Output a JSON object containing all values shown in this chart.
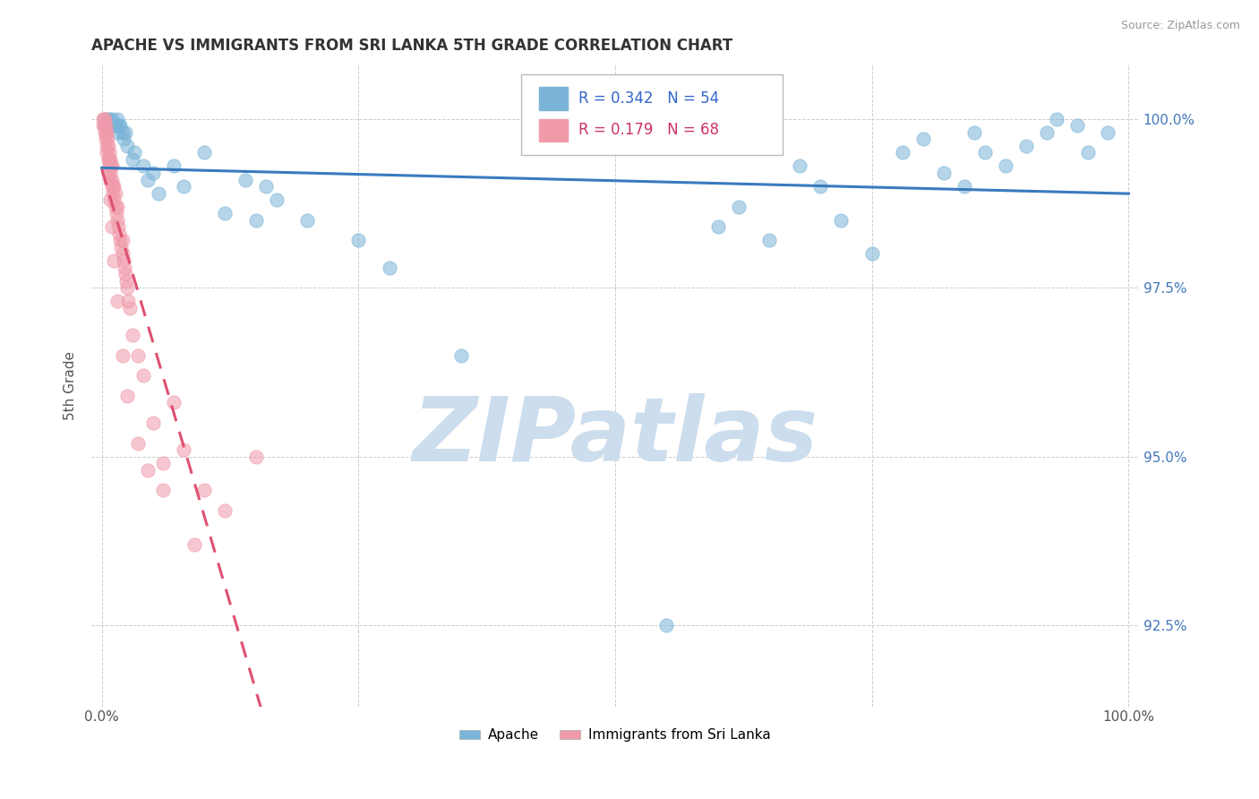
{
  "title": "APACHE VS IMMIGRANTS FROM SRI LANKA 5TH GRADE CORRELATION CHART",
  "source_text": "Source: ZipAtlas.com",
  "ylabel": "5th Grade",
  "xlim": [
    -1.0,
    101.0
  ],
  "ylim": [
    91.3,
    100.8
  ],
  "yticks": [
    92.5,
    95.0,
    97.5,
    100.0
  ],
  "xticks": [
    0.0,
    25.0,
    50.0,
    75.0,
    100.0
  ],
  "xtick_labels": [
    "0.0%",
    "",
    "",
    "",
    "100.0%"
  ],
  "ytick_labels": [
    "92.5%",
    "95.0%",
    "97.5%",
    "100.0%"
  ],
  "blue_color": "#7ab4d8",
  "pink_color": "#f09aaa",
  "blue_line_color": "#3a7abf",
  "pink_line_color": "#e05070",
  "blue_R": 0.342,
  "blue_N": 54,
  "pink_R": 0.179,
  "pink_N": 68,
  "watermark": "ZIPatlas",
  "watermark_color": "#ccdded",
  "blue_scatter_x": [
    0.3,
    0.5,
    0.7,
    0.8,
    1.0,
    1.2,
    1.4,
    1.5,
    1.6,
    1.7,
    1.8,
    2.0,
    2.1,
    2.3,
    2.5,
    3.0,
    3.2,
    4.0,
    4.5,
    5.0,
    5.5,
    7.0,
    8.0,
    10.0,
    12.0,
    14.0,
    15.0,
    16.0,
    17.0,
    20.0,
    25.0,
    28.0,
    35.0,
    55.0,
    60.0,
    62.0,
    65.0,
    68.0,
    70.0,
    72.0,
    75.0,
    78.0,
    80.0,
    82.0,
    84.0,
    85.0,
    86.0,
    88.0,
    90.0,
    92.0,
    93.0,
    95.0,
    96.0,
    98.0
  ],
  "blue_scatter_y": [
    99.9,
    100.0,
    100.0,
    99.9,
    100.0,
    99.9,
    99.9,
    100.0,
    99.8,
    99.9,
    99.9,
    99.8,
    99.7,
    99.8,
    99.6,
    99.4,
    99.5,
    99.3,
    99.1,
    99.2,
    98.9,
    99.3,
    99.0,
    99.5,
    98.6,
    99.1,
    98.5,
    99.0,
    98.8,
    98.5,
    98.2,
    97.8,
    96.5,
    92.5,
    98.4,
    98.7,
    98.2,
    99.3,
    99.0,
    98.5,
    98.0,
    99.5,
    99.7,
    99.2,
    99.0,
    99.8,
    99.5,
    99.3,
    99.6,
    99.8,
    100.0,
    99.9,
    99.5,
    99.8
  ],
  "pink_scatter_x": [
    0.1,
    0.15,
    0.2,
    0.25,
    0.3,
    0.3,
    0.35,
    0.4,
    0.4,
    0.45,
    0.5,
    0.5,
    0.55,
    0.6,
    0.65,
    0.7,
    0.7,
    0.75,
    0.8,
    0.8,
    0.85,
    0.9,
    0.95,
    1.0,
    1.0,
    1.1,
    1.1,
    1.2,
    1.2,
    1.3,
    1.3,
    1.4,
    1.5,
    1.5,
    1.6,
    1.7,
    1.8,
    1.9,
    2.0,
    2.0,
    2.1,
    2.2,
    2.3,
    2.4,
    2.5,
    2.6,
    2.7,
    3.0,
    3.5,
    4.0,
    5.0,
    6.0,
    7.0,
    8.0,
    10.0,
    12.0,
    15.0,
    0.6,
    0.8,
    1.0,
    1.2,
    1.5,
    2.0,
    2.5,
    3.5,
    4.5,
    6.0,
    9.0
  ],
  "pink_scatter_y": [
    100.0,
    99.9,
    100.0,
    99.9,
    99.8,
    100.0,
    99.7,
    99.9,
    99.8,
    99.6,
    99.8,
    99.5,
    99.7,
    99.4,
    99.6,
    99.3,
    99.5,
    99.4,
    99.2,
    99.4,
    99.1,
    99.3,
    99.0,
    99.1,
    99.3,
    98.9,
    99.0,
    98.8,
    99.0,
    98.7,
    98.9,
    98.6,
    98.5,
    98.7,
    98.4,
    98.3,
    98.2,
    98.1,
    98.0,
    98.2,
    97.9,
    97.8,
    97.7,
    97.6,
    97.5,
    97.3,
    97.2,
    96.8,
    96.5,
    96.2,
    95.5,
    94.9,
    95.8,
    95.1,
    94.5,
    94.2,
    95.0,
    99.2,
    98.8,
    98.4,
    97.9,
    97.3,
    96.5,
    95.9,
    95.2,
    94.8,
    94.5,
    93.7
  ]
}
